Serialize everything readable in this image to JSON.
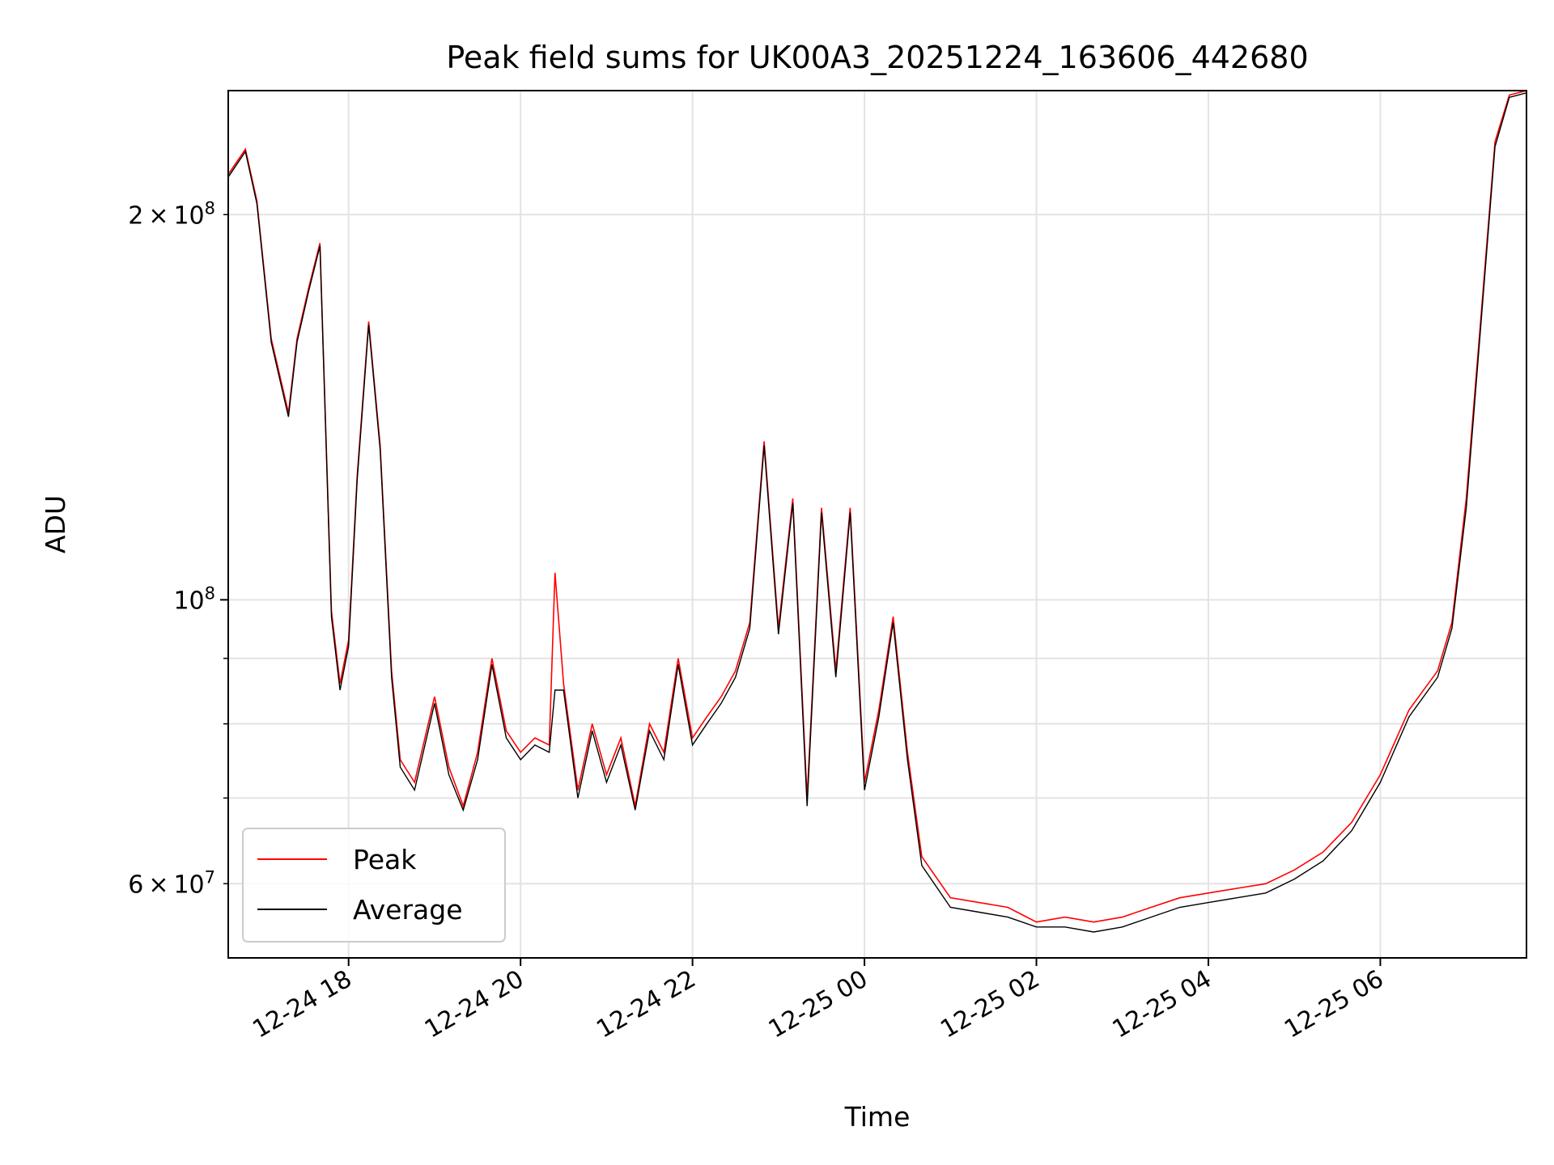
{
  "chart_data": {
    "type": "line",
    "title": "Peak field sums for UK00A3_20251224_163606_442680",
    "xlabel": "Time",
    "ylabel": "ADU",
    "y_scale": "log",
    "ylim": [
      52500000,
      250000000
    ],
    "xlim": [
      "2025-12-24 16:36",
      "2025-12-25 07:42"
    ],
    "x_tick_labels": [
      "12-24 18",
      "12-24 20",
      "12-24 22",
      "12-25 00",
      "12-25 02",
      "12-25 04",
      "12-25 06"
    ],
    "x_tick_values": [
      "2025-12-24 18:00",
      "2025-12-24 20:00",
      "2025-12-24 22:00",
      "2025-12-25 00:00",
      "2025-12-25 02:00",
      "2025-12-25 04:00",
      "2025-12-25 06:00"
    ],
    "y_tick_labels": [
      {
        "value": 200000000,
        "mantissa": "2",
        "exponent": "8"
      },
      {
        "value": 100000000,
        "mantissa": "",
        "exponent": "8"
      },
      {
        "value": 60000000,
        "mantissa": "6",
        "exponent": "7"
      }
    ],
    "grid": true,
    "legend_position": "lower-left",
    "series": [
      {
        "name": "Peak",
        "color": "#ff0000",
        "x": [
          "2025-12-24 16:36",
          "2025-12-24 16:48",
          "2025-12-24 16:56",
          "2025-12-24 17:06",
          "2025-12-24 17:18",
          "2025-12-24 17:24",
          "2025-12-24 17:32",
          "2025-12-24 17:40",
          "2025-12-24 17:48",
          "2025-12-24 17:54",
          "2025-12-24 18:00",
          "2025-12-24 18:06",
          "2025-12-24 18:14",
          "2025-12-24 18:22",
          "2025-12-24 18:30",
          "2025-12-24 18:36",
          "2025-12-24 18:46",
          "2025-12-24 19:00",
          "2025-12-24 19:10",
          "2025-12-24 19:20",
          "2025-12-24 19:30",
          "2025-12-24 19:40",
          "2025-12-24 19:50",
          "2025-12-24 20:00",
          "2025-12-24 20:10",
          "2025-12-24 20:20",
          "2025-12-24 20:24",
          "2025-12-24 20:30",
          "2025-12-24 20:40",
          "2025-12-24 20:50",
          "2025-12-24 21:00",
          "2025-12-24 21:10",
          "2025-12-24 21:20",
          "2025-12-24 21:30",
          "2025-12-24 21:40",
          "2025-12-24 21:50",
          "2025-12-24 22:00",
          "2025-12-24 22:10",
          "2025-12-24 22:20",
          "2025-12-24 22:30",
          "2025-12-24 22:40",
          "2025-12-24 22:50",
          "2025-12-24 23:00",
          "2025-12-24 23:10",
          "2025-12-24 23:20",
          "2025-12-24 23:30",
          "2025-12-24 23:40",
          "2025-12-24 23:50",
          "2025-12-25 00:00",
          "2025-12-25 00:10",
          "2025-12-25 00:20",
          "2025-12-25 00:30",
          "2025-12-25 00:40",
          "2025-12-25 01:00",
          "2025-12-25 01:20",
          "2025-12-25 01:40",
          "2025-12-25 02:00",
          "2025-12-25 02:20",
          "2025-12-25 02:40",
          "2025-12-25 03:00",
          "2025-12-25 03:20",
          "2025-12-25 03:40",
          "2025-12-25 04:00",
          "2025-12-25 04:20",
          "2025-12-25 04:40",
          "2025-12-25 05:00",
          "2025-12-25 05:20",
          "2025-12-25 05:40",
          "2025-12-25 06:00",
          "2025-12-25 06:20",
          "2025-12-25 06:40",
          "2025-12-25 06:50",
          "2025-12-25 07:00",
          "2025-12-25 07:10",
          "2025-12-25 07:20",
          "2025-12-25 07:30",
          "2025-12-25 07:42"
        ],
        "values": [
          215000000,
          225000000,
          205000000,
          160000000,
          140000000,
          160000000,
          175000000,
          190000000,
          98000000,
          86000000,
          93000000,
          125000000,
          165000000,
          132000000,
          88000000,
          75000000,
          72000000,
          84000000,
          74000000,
          69000000,
          76000000,
          90000000,
          79000000,
          76000000,
          78000000,
          77000000,
          105000000,
          86000000,
          71000000,
          80000000,
          73000000,
          78000000,
          69000000,
          80000000,
          76000000,
          90000000,
          78000000,
          81000000,
          84000000,
          88000000,
          96000000,
          133000000,
          95000000,
          120000000,
          70000000,
          118000000,
          88000000,
          118000000,
          72000000,
          82000000,
          97000000,
          76000000,
          63000000,
          58500000,
          58000000,
          57500000,
          56000000,
          56500000,
          56000000,
          56500000,
          57500000,
          58500000,
          59000000,
          59500000,
          60000000,
          61500000,
          63500000,
          67000000,
          73000000,
          82000000,
          88000000,
          96000000,
          120000000,
          165000000,
          228000000,
          248000000,
          250000000
        ]
      },
      {
        "name": "Average",
        "color": "#000000",
        "x": [
          "2025-12-24 16:36",
          "2025-12-24 16:48",
          "2025-12-24 16:56",
          "2025-12-24 17:06",
          "2025-12-24 17:18",
          "2025-12-24 17:24",
          "2025-12-24 17:32",
          "2025-12-24 17:40",
          "2025-12-24 17:48",
          "2025-12-24 17:54",
          "2025-12-24 18:00",
          "2025-12-24 18:06",
          "2025-12-24 18:14",
          "2025-12-24 18:22",
          "2025-12-24 18:30",
          "2025-12-24 18:36",
          "2025-12-24 18:46",
          "2025-12-24 19:00",
          "2025-12-24 19:10",
          "2025-12-24 19:20",
          "2025-12-24 19:30",
          "2025-12-24 19:40",
          "2025-12-24 19:50",
          "2025-12-24 20:00",
          "2025-12-24 20:10",
          "2025-12-24 20:20",
          "2025-12-24 20:24",
          "2025-12-24 20:30",
          "2025-12-24 20:40",
          "2025-12-24 20:50",
          "2025-12-24 21:00",
          "2025-12-24 21:10",
          "2025-12-24 21:20",
          "2025-12-24 21:30",
          "2025-12-24 21:40",
          "2025-12-24 21:50",
          "2025-12-24 22:00",
          "2025-12-24 22:10",
          "2025-12-24 22:20",
          "2025-12-24 22:30",
          "2025-12-24 22:40",
          "2025-12-24 22:50",
          "2025-12-24 23:00",
          "2025-12-24 23:10",
          "2025-12-24 23:20",
          "2025-12-24 23:30",
          "2025-12-24 23:40",
          "2025-12-24 23:50",
          "2025-12-25 00:00",
          "2025-12-25 00:10",
          "2025-12-25 00:20",
          "2025-12-25 00:30",
          "2025-12-25 00:40",
          "2025-12-25 01:00",
          "2025-12-25 01:20",
          "2025-12-25 01:40",
          "2025-12-25 02:00",
          "2025-12-25 02:20",
          "2025-12-25 02:40",
          "2025-12-25 03:00",
          "2025-12-25 03:20",
          "2025-12-25 03:40",
          "2025-12-25 04:00",
          "2025-12-25 04:20",
          "2025-12-25 04:40",
          "2025-12-25 05:00",
          "2025-12-25 05:20",
          "2025-12-25 05:40",
          "2025-12-25 06:00",
          "2025-12-25 06:20",
          "2025-12-25 06:40",
          "2025-12-25 06:50",
          "2025-12-25 07:00",
          "2025-12-25 07:10",
          "2025-12-25 07:20",
          "2025-12-25 07:30",
          "2025-12-25 07:42"
        ],
        "values": [
          214000000,
          224000000,
          204000000,
          159000000,
          139000000,
          159000000,
          174000000,
          189000000,
          97000000,
          85000000,
          92000000,
          124000000,
          164000000,
          131000000,
          87000000,
          74000000,
          71000000,
          83000000,
          73000000,
          68500000,
          75000000,
          89000000,
          78000000,
          75000000,
          77000000,
          76000000,
          85000000,
          85000000,
          70000000,
          79000000,
          72000000,
          77000000,
          68500000,
          79000000,
          75000000,
          89000000,
          77000000,
          80000000,
          83000000,
          87000000,
          95000000,
          132000000,
          94000000,
          119000000,
          69000000,
          117000000,
          87000000,
          117000000,
          71000000,
          81000000,
          96000000,
          75000000,
          62000000,
          57500000,
          57000000,
          56500000,
          55500000,
          55500000,
          55000000,
          55500000,
          56500000,
          57500000,
          58000000,
          58500000,
          59000000,
          60500000,
          62500000,
          66000000,
          72000000,
          81000000,
          87000000,
          95000000,
          118000000,
          163000000,
          226000000,
          247000000,
          249000000
        ]
      }
    ]
  }
}
